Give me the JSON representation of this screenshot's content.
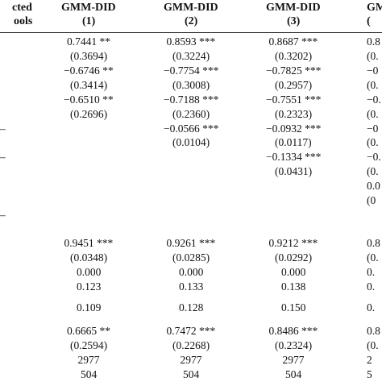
{
  "table": {
    "rows": [
      [
        "cted",
        "GMM-DID",
        "GMM-DID",
        "GMM-DID",
        "GM"
      ],
      [
        "ools",
        "(1)",
        "(2)",
        "(3)",
        "("
      ],
      [
        null,
        "0.7441 **",
        "0.8593 ***",
        "0.8687 ***",
        "0.8"
      ],
      [
        null,
        "(0.3694)",
        "(0.3224)",
        "(0.3202)",
        "(0."
      ],
      [
        null,
        "−0.6746 **",
        "−0.7754 ***",
        "−0.7825 ***",
        "−0"
      ],
      [
        null,
        "(0.3414)",
        "(0.3008)",
        "(0.2957)",
        "(0."
      ],
      [
        null,
        "−0.6510 **",
        "−0.7188 ***",
        "−0.7551 ***",
        "−0."
      ],
      [
        null,
        "(0.2696)",
        "(0.2360)",
        "(0.2323)",
        "(0."
      ],
      [
        "–",
        null,
        "−0.0566 ***",
        "−0.0932 ***",
        "−0"
      ],
      [
        null,
        null,
        "(0.0104)",
        "(0.0117)",
        "(0."
      ],
      [
        "–",
        null,
        null,
        "−0.1334 ***",
        "−0."
      ],
      [
        null,
        null,
        null,
        "(0.0431)",
        "(0."
      ],
      [
        null,
        null,
        null,
        null,
        "0.0"
      ],
      [
        null,
        null,
        null,
        null,
        "(0"
      ],
      [
        "–",
        null,
        null,
        null,
        null
      ],
      [
        null,
        "0.9451 ***",
        "0.9261 ***",
        "0.9212 ***",
        "0.8"
      ],
      [
        null,
        "(0.0348)",
        "(0.0285)",
        "(0.0292)",
        "(0."
      ],
      [
        null,
        "0.000",
        "0.000",
        "0.000",
        "0."
      ],
      [
        null,
        "0.123",
        "0.133",
        "0.138",
        "0."
      ],
      [
        null,
        "0.109",
        "0.128",
        "0.150",
        "0."
      ],
      [
        null,
        "0.6665 **",
        "0.7472 ***",
        "0.8486 ***",
        "0.8"
      ],
      [
        null,
        "(0.2594)",
        "(0.2268)",
        "(0.2324)",
        "(0."
      ],
      [
        null,
        "2977",
        "2977",
        "2977",
        "2"
      ],
      [
        null,
        "504",
        "504",
        "504",
        "5"
      ]
    ]
  }
}
